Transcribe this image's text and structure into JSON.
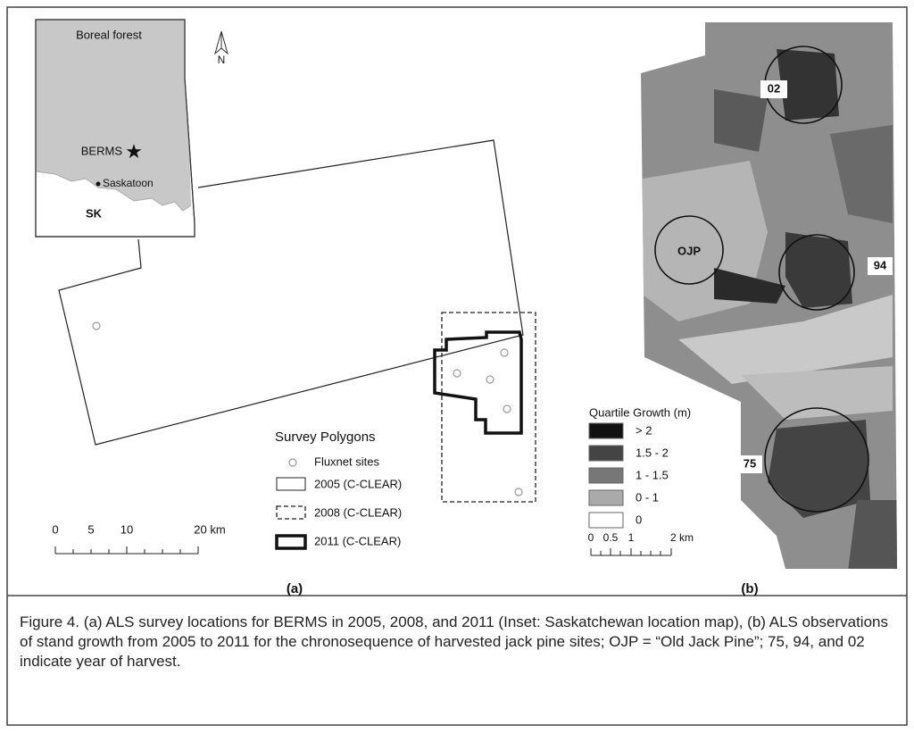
{
  "panel_a": {
    "label": "(a)",
    "inset": {
      "region": "Boreal forest",
      "site": "BERMS",
      "city": "Saskatoon",
      "province": "SK",
      "north": "N"
    },
    "legend": {
      "title": "Survey Polygons",
      "items": [
        "Fluxnet sites",
        "2005 (C-CLEAR)",
        "2008 (C-CLEAR)",
        "2011 (C-CLEAR)"
      ]
    },
    "scale_bar": [
      "0",
      "5",
      "10",
      "20 km"
    ]
  },
  "panel_b": {
    "label": "(b)",
    "sites": [
      "02",
      "OJP",
      "94",
      "75"
    ],
    "legend": {
      "title": "Quartile Growth (m)",
      "items": [
        "> 2",
        "1.5 - 2",
        "1 - 1.5",
        "0 - 1",
        "0"
      ]
    },
    "scale_bar": [
      "0",
      "0.5",
      "1",
      "2 km"
    ]
  },
  "caption": "Figure 4. (a) ALS survey locations for BERMS in 2005, 2008, and 2011 (Inset: Saskatchewan location map), (b) ALS observations of stand growth from 2005 to 2011 for the chronosequence of harvested jack pine sites; OJP = “Old Jack Pine”; 75, 94, and 02 indicate year of harvest."
}
